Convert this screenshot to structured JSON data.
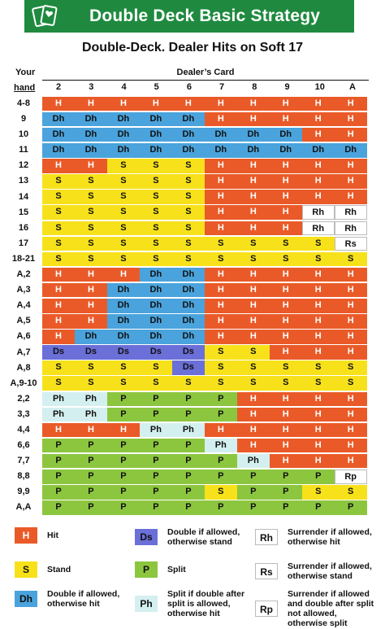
{
  "header": {
    "title": "Double Deck Basic Strategy"
  },
  "subtitle": "Double-Deck. Dealer Hits on Soft 17",
  "table": {
    "your_label": "Your",
    "hand_label": "hand",
    "dealer_label": "Dealer’s Card",
    "dealer_cards": [
      "2",
      "3",
      "4",
      "5",
      "6",
      "7",
      "8",
      "9",
      "10",
      "A"
    ],
    "rows": [
      {
        "hand": "4-8",
        "cells": [
          "H",
          "H",
          "H",
          "H",
          "H",
          "H",
          "H",
          "H",
          "H",
          "H"
        ]
      },
      {
        "hand": "9",
        "cells": [
          "Dh",
          "Dh",
          "Dh",
          "Dh",
          "Dh",
          "H",
          "H",
          "H",
          "H",
          "H"
        ]
      },
      {
        "hand": "10",
        "cells": [
          "Dh",
          "Dh",
          "Dh",
          "Dh",
          "Dh",
          "Dh",
          "Dh",
          "Dh",
          "H",
          "H"
        ]
      },
      {
        "hand": "11",
        "cells": [
          "Dh",
          "Dh",
          "Dh",
          "Dh",
          "Dh",
          "Dh",
          "Dh",
          "Dh",
          "Dh",
          "Dh"
        ]
      },
      {
        "hand": "12",
        "cells": [
          "H",
          "H",
          "S",
          "S",
          "S",
          "H",
          "H",
          "H",
          "H",
          "H"
        ]
      },
      {
        "hand": "13",
        "cells": [
          "S",
          "S",
          "S",
          "S",
          "S",
          "H",
          "H",
          "H",
          "H",
          "H"
        ]
      },
      {
        "hand": "14",
        "cells": [
          "S",
          "S",
          "S",
          "S",
          "S",
          "H",
          "H",
          "H",
          "H",
          "H"
        ]
      },
      {
        "hand": "15",
        "cells": [
          "S",
          "S",
          "S",
          "S",
          "S",
          "H",
          "H",
          "H",
          "Rh",
          "Rh"
        ]
      },
      {
        "hand": "16",
        "cells": [
          "S",
          "S",
          "S",
          "S",
          "S",
          "H",
          "H",
          "H",
          "Rh",
          "Rh"
        ]
      },
      {
        "hand": "17",
        "cells": [
          "S",
          "S",
          "S",
          "S",
          "S",
          "S",
          "S",
          "S",
          "S",
          "Rs"
        ]
      },
      {
        "hand": "18-21",
        "cells": [
          "S",
          "S",
          "S",
          "S",
          "S",
          "S",
          "S",
          "S",
          "S",
          "S"
        ]
      },
      {
        "hand": "A,2",
        "cells": [
          "H",
          "H",
          "H",
          "Dh",
          "Dh",
          "H",
          "H",
          "H",
          "H",
          "H"
        ]
      },
      {
        "hand": "A,3",
        "cells": [
          "H",
          "H",
          "Dh",
          "Dh",
          "Dh",
          "H",
          "H",
          "H",
          "H",
          "H"
        ]
      },
      {
        "hand": "A,4",
        "cells": [
          "H",
          "H",
          "Dh",
          "Dh",
          "Dh",
          "H",
          "H",
          "H",
          "H",
          "H"
        ]
      },
      {
        "hand": "A,5",
        "cells": [
          "H",
          "H",
          "Dh",
          "Dh",
          "Dh",
          "H",
          "H",
          "H",
          "H",
          "H"
        ]
      },
      {
        "hand": "A,6",
        "cells": [
          "H",
          "Dh",
          "Dh",
          "Dh",
          "Dh",
          "H",
          "H",
          "H",
          "H",
          "H"
        ]
      },
      {
        "hand": "A,7",
        "cells": [
          "Ds",
          "Ds",
          "Ds",
          "Ds",
          "Ds",
          "S",
          "S",
          "H",
          "H",
          "H"
        ]
      },
      {
        "hand": "A,8",
        "cells": [
          "S",
          "S",
          "S",
          "S",
          "Ds",
          "S",
          "S",
          "S",
          "S",
          "S"
        ]
      },
      {
        "hand": "A,9-10",
        "cells": [
          "S",
          "S",
          "S",
          "S",
          "S",
          "S",
          "S",
          "S",
          "S",
          "S"
        ]
      },
      {
        "hand": "2,2",
        "cells": [
          "Ph",
          "Ph",
          "P",
          "P",
          "P",
          "P",
          "H",
          "H",
          "H",
          "H"
        ]
      },
      {
        "hand": "3,3",
        "cells": [
          "Ph",
          "Ph",
          "P",
          "P",
          "P",
          "P",
          "H",
          "H",
          "H",
          "H"
        ]
      },
      {
        "hand": "4,4",
        "cells": [
          "H",
          "H",
          "H",
          "Ph",
          "Ph",
          "H",
          "H",
          "H",
          "H",
          "H"
        ]
      },
      {
        "hand": "6,6",
        "cells": [
          "P",
          "P",
          "P",
          "P",
          "P",
          "Ph",
          "H",
          "H",
          "H",
          "H"
        ]
      },
      {
        "hand": "7,7",
        "cells": [
          "P",
          "P",
          "P",
          "P",
          "P",
          "P",
          "Ph",
          "H",
          "H",
          "H"
        ]
      },
      {
        "hand": "8,8",
        "cells": [
          "P",
          "P",
          "P",
          "P",
          "P",
          "P",
          "P",
          "P",
          "P",
          "Rp"
        ]
      },
      {
        "hand": "9,9",
        "cells": [
          "P",
          "P",
          "P",
          "P",
          "P",
          "S",
          "P",
          "P",
          "S",
          "S"
        ]
      },
      {
        "hand": "A,A",
        "cells": [
          "P",
          "P",
          "P",
          "P",
          "P",
          "P",
          "P",
          "P",
          "P",
          "P"
        ]
      }
    ]
  },
  "legend": [
    {
      "code": "H",
      "text": "Hit"
    },
    {
      "code": "Ds",
      "text": "Double if allowed, otherwise stand"
    },
    {
      "code": "Rh",
      "text": "Surrender if allowed, otherwise hit"
    },
    {
      "code": "S",
      "text": "Stand"
    },
    {
      "code": "P",
      "text": "Split"
    },
    {
      "code": "Rs",
      "text": "Surrender if allowed, otherwise stand"
    },
    {
      "code": "Dh",
      "text": "Double if allowed, otherwise hit"
    },
    {
      "code": "Ph",
      "text": "Split if double after split is allowed, otherwise hit"
    },
    {
      "code": "Rp",
      "text": "Surrender if allowed and double after split not allowed, otherwise split"
    }
  ],
  "colors": {
    "banner": "#1f8a3f",
    "H": "#ea5a28",
    "S": "#f7e11a",
    "Dh": "#4aa3dc",
    "Ds": "#6b6fd8",
    "P": "#8cc63f",
    "Ph": "#d4efef",
    "R": "#ffffff"
  },
  "icons": {
    "logo": "playing-cards-icon"
  }
}
